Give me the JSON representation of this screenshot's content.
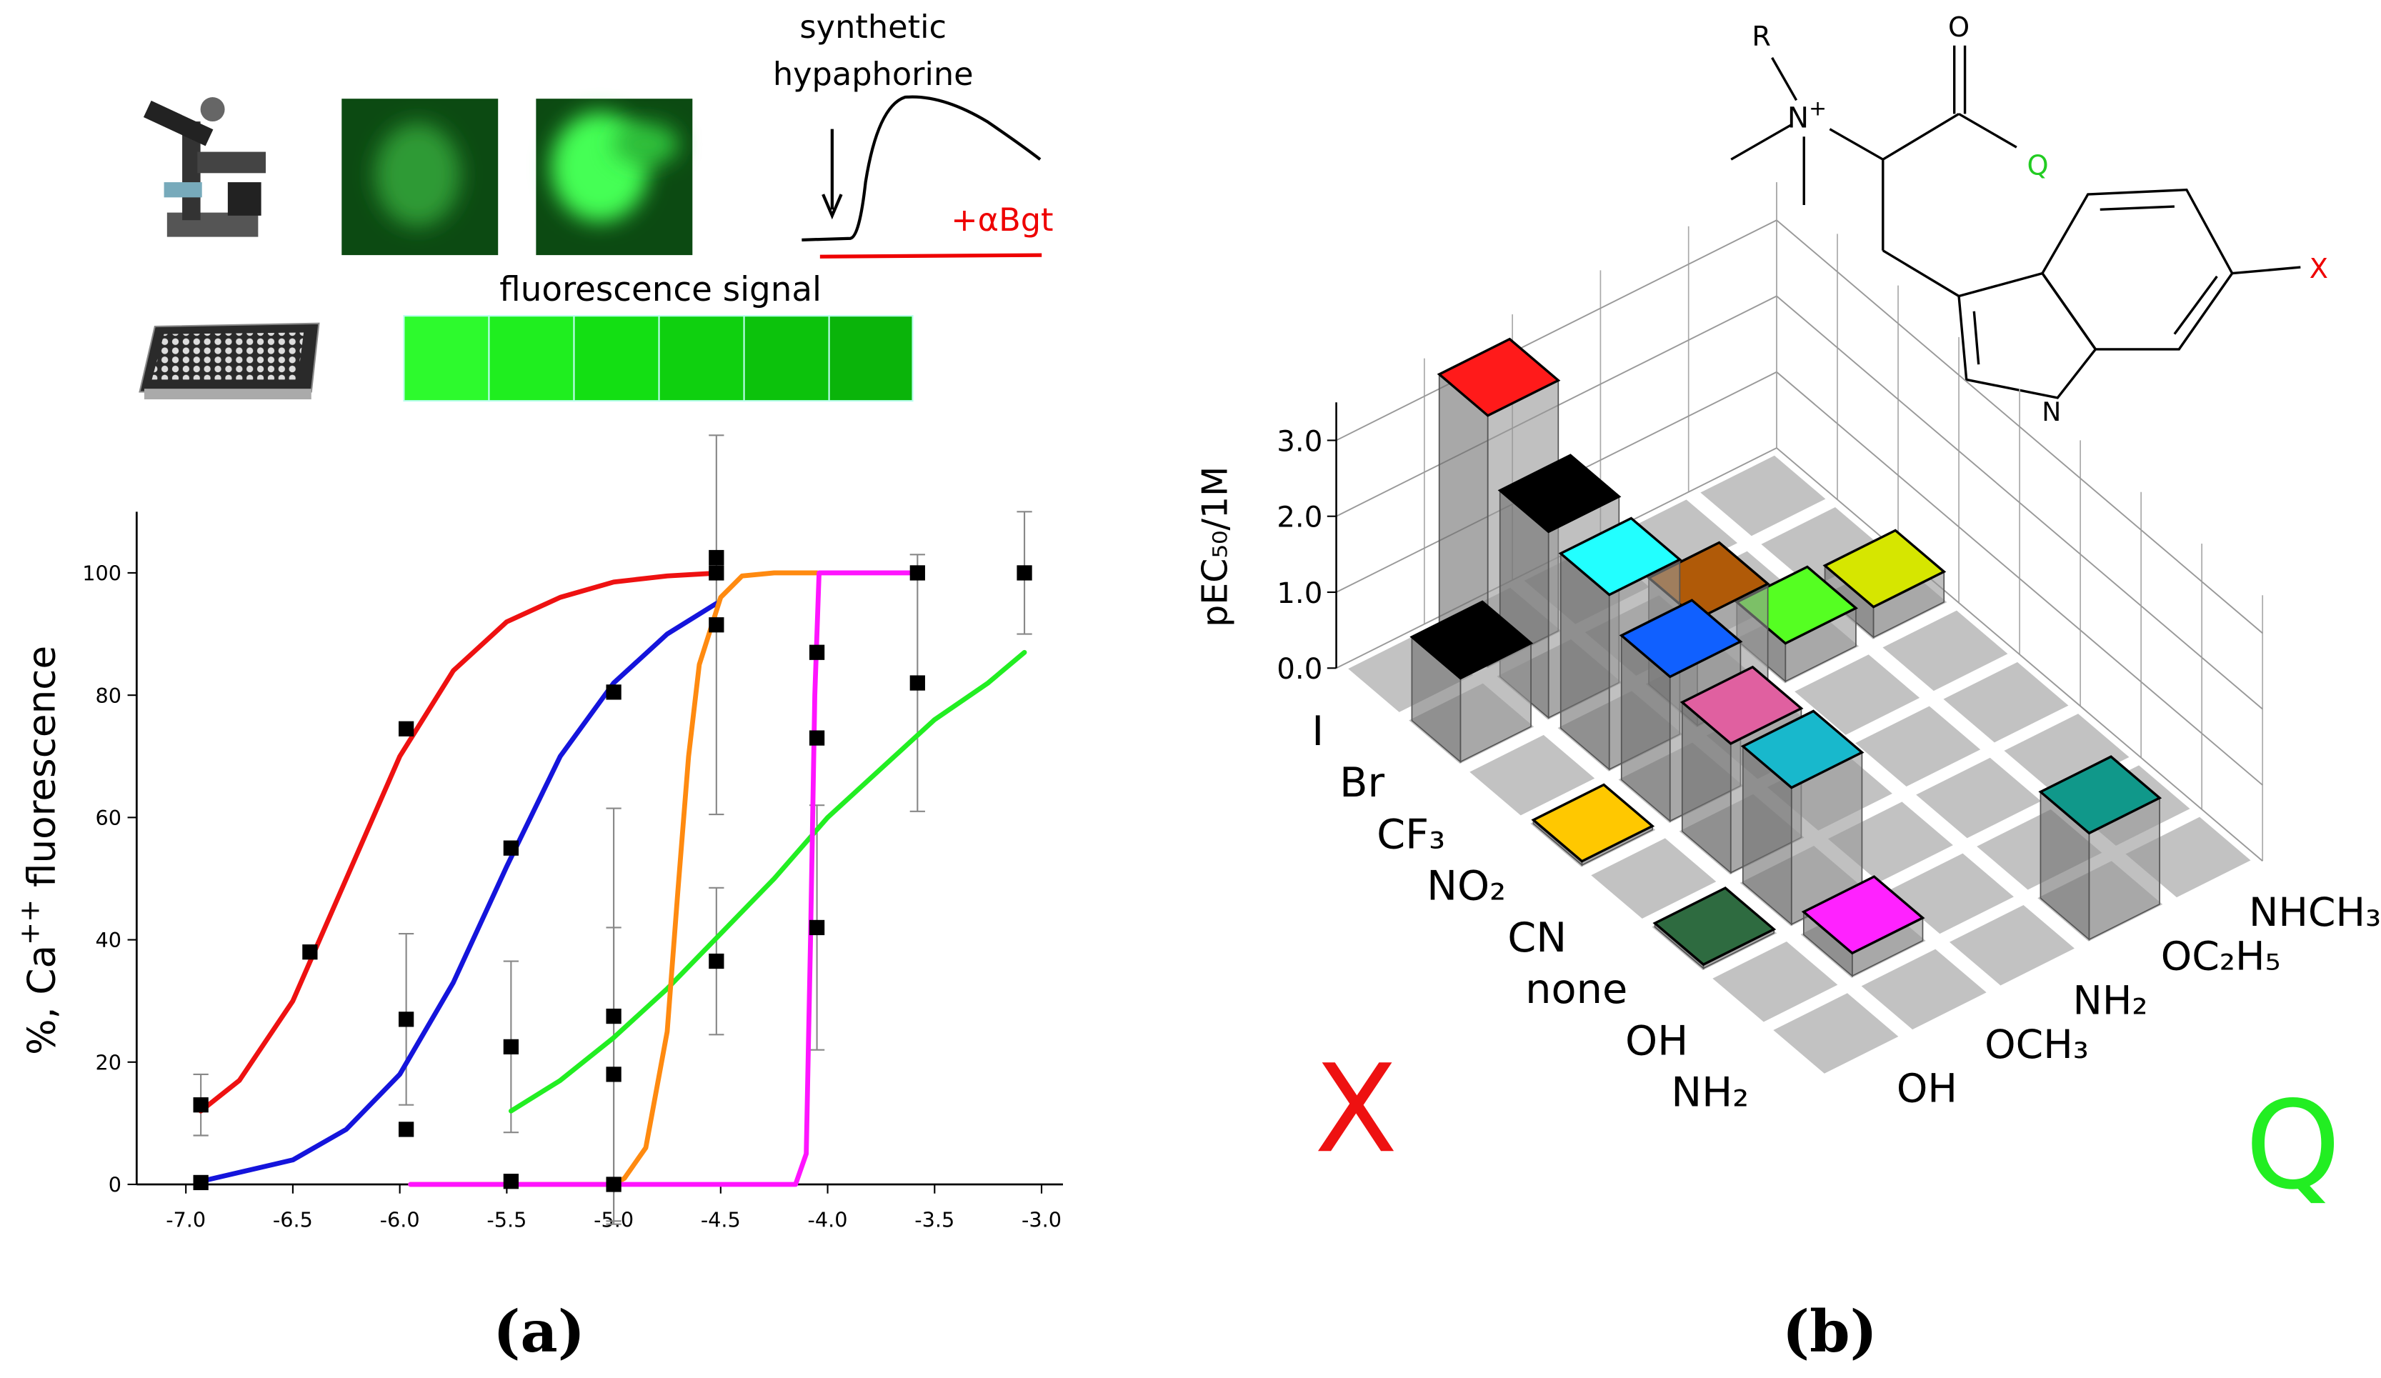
{
  "schematic": {
    "stimulus": [
      "synthetic",
      "hypaphorine"
    ],
    "blocker": "+αBgt",
    "signal_label": "fluorescence signal"
  },
  "chart_data": [
    {
      "type": "line",
      "y_label": [
        "%, Ca",
        "++",
        " fluorescence"
      ],
      "xlim": [
        -7.23,
        -2.9
      ],
      "ylim": [
        0,
        110
      ],
      "xticks": [
        {
          "value": -7,
          "label": "-7.0"
        },
        -6.5,
        {
          "value": -6,
          "label": "-6.0"
        },
        -5.5,
        {
          "value": -5,
          "label": "-5.0"
        },
        -4.5,
        {
          "value": -4,
          "label": "-4.0"
        },
        -3.5,
        {
          "value": -3,
          "label": "-3.0"
        }
      ],
      "yticks": [
        0,
        20,
        40,
        60,
        80,
        100
      ],
      "series": [
        {
          "color": "#ee1111",
          "x": [
            -6.93,
            -6.75,
            -6.5,
            -6.25,
            -6.0,
            -5.75,
            -5.5,
            -5.25,
            -5.0,
            -4.75,
            -4.5
          ],
          "values": [
            12,
            17,
            30,
            50,
            70,
            84,
            92,
            96,
            98.5,
            99.5,
            100
          ]
        },
        {
          "color": "#1414dc",
          "x": [
            -6.93,
            -6.5,
            -6.25,
            -6.0,
            -5.75,
            -5.5,
            -5.25,
            -5.0,
            -4.75,
            -4.52
          ],
          "values": [
            0.5,
            4,
            9,
            18,
            33,
            52,
            70,
            82,
            90,
            95
          ]
        },
        {
          "color": "#22ee22",
          "x": [
            -5.48,
            -5.25,
            -5.0,
            -4.75,
            -4.5,
            -4.25,
            -4.0,
            -3.75,
            -3.5,
            -3.25,
            -3.08
          ],
          "values": [
            12,
            17,
            24,
            32,
            41,
            50,
            60,
            68,
            76,
            82,
            87
          ]
        },
        {
          "color": "#ff8a10",
          "x": [
            -5.95,
            -5.0,
            -4.95,
            -4.85,
            -4.75,
            -4.7,
            -4.65,
            -4.6,
            -4.5,
            -4.4,
            -4.25,
            -4.05
          ],
          "values": [
            0,
            0,
            1,
            6,
            25,
            48,
            70,
            85,
            96,
            99.5,
            100,
            100
          ]
        },
        {
          "color": "#ff14ff",
          "x": [
            -5.95,
            -4.15,
            -4.1,
            -4.08,
            -4.06,
            -4.04,
            -3.58
          ],
          "values": [
            0,
            0,
            5,
            40,
            80,
            100,
            100
          ]
        }
      ],
      "points": {
        "color": "#000000",
        "x": [
          -6.93,
          -6.93,
          -6.42,
          -5.97,
          -5.97,
          -5.97,
          -5.48,
          -5.48,
          -5.48,
          -5.0,
          -5.0,
          -5.0,
          -5.0,
          -4.52,
          -4.52,
          -4.52,
          -4.52,
          -4.05,
          -4.05,
          -4.05,
          -3.58,
          -3.58,
          -3.08
        ],
        "values": [
          13,
          0.3,
          38,
          74.5,
          27,
          9,
          55,
          22.5,
          0.5,
          80.5,
          27.5,
          18,
          0,
          102.5,
          100,
          91.5,
          36.5,
          87,
          73,
          42,
          100,
          82,
          100
        ],
        "errors": [
          5,
          null,
          null,
          null,
          14,
          null,
          null,
          14,
          null,
          null,
          34,
          24,
          null,
          null,
          null,
          31,
          12,
          null,
          null,
          20,
          null,
          21,
          10
        ]
      }
    },
    {
      "type": "bar3d",
      "z_label": "pEC₅₀/1M",
      "zlim": [
        0,
        3.5
      ],
      "zticks": [
        {
          "value": 0,
          "label": "0.0"
        },
        {
          "value": 1,
          "label": "1.0"
        },
        {
          "value": 2,
          "label": "2.0"
        },
        {
          "value": 3,
          "label": "3.0"
        }
      ],
      "x_title": "X",
      "q_title": "Q",
      "x_categories": [
        "I",
        "Br",
        "CF₃",
        "NO₂",
        "CN",
        "none",
        "OH",
        "NH₂"
      ],
      "q_categories": [
        "OH",
        "OCH₃",
        "NH₂",
        "OC₂H₅",
        "NHCH₃"
      ],
      "values": [
        [
          null,
          3.3,
          null,
          null,
          null
        ],
        [
          1.1,
          2.45,
          null,
          null,
          null
        ],
        [
          null,
          2.3,
          1.4,
          0.5,
          0.4
        ],
        [
          0.05,
          1.9,
          null,
          null,
          null
        ],
        [
          null,
          1.7,
          null,
          null,
          null
        ],
        [
          0.05,
          1.8,
          null,
          null,
          null
        ],
        [
          null,
          0.3,
          null,
          null,
          null
        ],
        [
          null,
          null,
          null,
          1.4,
          null
        ]
      ],
      "colors": [
        [
          null,
          "#ff1a1a",
          null,
          null,
          null
        ],
        [
          null,
          null,
          null,
          null,
          null
        ],
        [
          null,
          "#22ffff",
          "#b05a08",
          "#55ff22",
          "#d6e600"
        ],
        [
          "#ffc800",
          "#1060ff",
          null,
          null,
          null
        ],
        [
          null,
          "#e060a0",
          null,
          null,
          null
        ],
        [
          "#2e6b40",
          "#18b8cc",
          null,
          null,
          null
        ],
        [
          null,
          "#ff22ff",
          null,
          null,
          null
        ],
        [
          null,
          null,
          null,
          "#10988a",
          null
        ]
      ]
    }
  ],
  "molecule": {
    "r": "R",
    "amine": [
      "N",
      "+"
    ],
    "oxygen": "O",
    "q": "Q",
    "x": "X",
    "indole_n": "N"
  },
  "panel_labels": [
    "(a)",
    "(b)"
  ]
}
